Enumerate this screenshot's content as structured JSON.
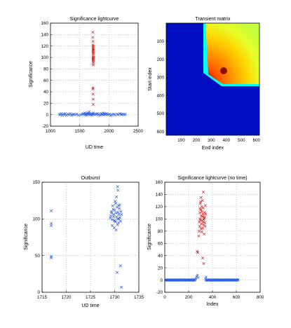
{
  "chart_data": [
    {
      "type": "scatter",
      "title": "Significance lightcurve",
      "xlabel": "UD time",
      "ylabel": "Significance",
      "xlim": [
        1000,
        2500
      ],
      "ylim": [
        -20,
        160
      ],
      "xticks": [
        1000,
        1500,
        2000,
        2500
      ],
      "yticks": [
        -20,
        0,
        20,
        40,
        60,
        80,
        100,
        120,
        140,
        160
      ],
      "grid": true,
      "series": [
        {
          "color": "#2f5de0",
          "marker": "x",
          "points": [
            [
              1150,
              1
            ],
            [
              1165,
              0
            ],
            [
              1185,
              2
            ],
            [
              1200,
              -1
            ],
            [
              1220,
              1
            ],
            [
              1240,
              0
            ],
            [
              1255,
              2
            ],
            [
              1275,
              -1
            ],
            [
              1300,
              1
            ],
            [
              1320,
              0
            ],
            [
              1340,
              2
            ],
            [
              1360,
              -1
            ],
            [
              1380,
              0
            ],
            [
              1395,
              1
            ],
            [
              1420,
              0
            ],
            [
              1450,
              1
            ],
            [
              1480,
              -1
            ],
            [
              1520,
              0
            ],
            [
              1545,
              1
            ],
            [
              1560,
              2
            ],
            [
              1575,
              0
            ],
            [
              1590,
              3
            ],
            [
              1600,
              1
            ],
            [
              1610,
              -1
            ],
            [
              1620,
              2
            ],
            [
              1630,
              0
            ],
            [
              1640,
              3
            ],
            [
              1650,
              1
            ],
            [
              1660,
              5
            ],
            [
              1668,
              2
            ],
            [
              1675,
              0
            ],
            [
              1690,
              1
            ],
            [
              1700,
              -1
            ],
            [
              1710,
              2
            ],
            [
              1720,
              0
            ],
            [
              1735,
              3
            ],
            [
              1745,
              1
            ],
            [
              1760,
              0
            ],
            [
              1780,
              1
            ],
            [
              1800,
              2
            ],
            [
              1815,
              0
            ],
            [
              1830,
              1
            ],
            [
              1850,
              -1
            ],
            [
              1870,
              2
            ],
            [
              1880,
              0
            ],
            [
              1890,
              1
            ],
            [
              1905,
              3
            ],
            [
              1915,
              0
            ],
            [
              1925,
              2
            ],
            [
              1935,
              1
            ],
            [
              1945,
              0
            ],
            [
              1960,
              2
            ],
            [
              1975,
              1
            ],
            [
              1990,
              0
            ],
            [
              2010,
              1
            ],
            [
              2030,
              -1
            ],
            [
              2050,
              0
            ],
            [
              2080,
              1
            ],
            [
              2100,
              0
            ],
            [
              2140,
              1
            ],
            [
              2160,
              0
            ],
            [
              2190,
              2
            ],
            [
              2210,
              1
            ],
            [
              2220,
              0
            ],
            [
              2240,
              1
            ],
            [
              2265,
              0
            ],
            [
              2280,
              1
            ]
          ]
        },
        {
          "color": "#e02020",
          "marker": "x",
          "points": [
            [
              1725,
              144
            ],
            [
              1726,
              135
            ],
            [
              1727,
              128
            ],
            [
              1727,
              122
            ],
            [
              1728,
              118
            ],
            [
              1728,
              114
            ],
            [
              1729,
              110
            ],
            [
              1729,
              107
            ],
            [
              1730,
              104
            ],
            [
              1730,
              101
            ],
            [
              1731,
              99
            ],
            [
              1731,
              96
            ],
            [
              1731,
              93
            ],
            [
              1732,
              90
            ],
            [
              1732,
              87
            ],
            [
              1733,
              120
            ],
            [
              1733,
              112
            ],
            [
              1734,
              108
            ],
            [
              1734,
              100
            ],
            [
              1730,
              113
            ],
            [
              1729,
              98
            ],
            [
              1728,
              95
            ],
            [
              1732,
              116
            ],
            [
              1726,
              47
            ],
            [
              1727,
              45
            ],
            [
              1728,
              36
            ],
            [
              1729,
              27
            ],
            [
              1730,
              18
            ]
          ]
        }
      ]
    },
    {
      "type": "heatmap",
      "title": "Transient matrix",
      "xlabel": "End index",
      "ylabel": "Start index",
      "xlim": [
        0,
        620
      ],
      "ylim": [
        620,
        0
      ],
      "xticks": [
        100,
        200,
        300,
        400,
        500,
        600
      ],
      "yticks": [
        100,
        200,
        300,
        400,
        500,
        600
      ],
      "colormap": "jet",
      "peak": [
        320,
        265
      ],
      "description_values": "blue background, hot region for start<=~290 and end>=~300"
    },
    {
      "type": "scatter",
      "title": "Outburst",
      "xlabel": "UD time",
      "ylabel": "Significance",
      "xlim": [
        1715,
        1735
      ],
      "ylim": [
        0,
        150
      ],
      "xticks": [
        1715,
        1720,
        1725,
        1730,
        1735
      ],
      "yticks": [
        0,
        50,
        100,
        150
      ],
      "grid": true,
      "series": [
        {
          "color": "#2f5de0",
          "marker": "x",
          "points": [
            [
              1716.9,
              111
            ],
            [
              1716.9,
              94
            ],
            [
              1716.9,
              91
            ],
            [
              1716.9,
              49
            ],
            [
              1716.9,
              47
            ],
            [
              1729.1,
              101
            ],
            [
              1729.2,
              104
            ],
            [
              1729.3,
              110
            ],
            [
              1729.4,
              108
            ],
            [
              1729.5,
              99
            ],
            [
              1729.6,
              118
            ],
            [
              1729.7,
              113
            ],
            [
              1729.8,
              106
            ],
            [
              1729.9,
              97
            ],
            [
              1730.0,
              112
            ],
            [
              1730.1,
              124
            ],
            [
              1730.2,
              121
            ],
            [
              1730.3,
              108
            ],
            [
              1730.4,
              103
            ],
            [
              1730.5,
              116
            ],
            [
              1730.6,
              100
            ],
            [
              1730.7,
              109
            ],
            [
              1730.8,
              95
            ],
            [
              1730.9,
              106
            ],
            [
              1731.0,
              114
            ],
            [
              1731.1,
              102
            ],
            [
              1731.2,
              97
            ],
            [
              1729.9,
              88
            ],
            [
              1730.3,
              85
            ],
            [
              1730.6,
              92
            ],
            [
              1731.3,
              110
            ],
            [
              1730.8,
              118
            ],
            [
              1730.0,
              98
            ],
            [
              1729.5,
              91
            ],
            [
              1730.4,
              130
            ],
            [
              1730.7,
              139
            ],
            [
              1730.6,
              144
            ],
            [
              1731.0,
              119
            ],
            [
              1730.2,
              96
            ],
            [
              1729.8,
              103
            ],
            [
              1730.9,
              100
            ],
            [
              1731.4,
              106
            ],
            [
              1730.5,
              27
            ],
            [
              1731.2,
              36
            ],
            [
              1731.4,
              7
            ]
          ]
        }
      ]
    },
    {
      "type": "scatter",
      "title": "Significance lightcurve (no time)",
      "xlabel": "Index",
      "ylabel": "Significance",
      "xlim": [
        0,
        800
      ],
      "ylim": [
        -20,
        160
      ],
      "xticks": [
        0,
        200,
        400,
        600,
        800
      ],
      "yticks": [
        -20,
        0,
        20,
        40,
        60,
        80,
        100,
        120,
        140,
        160
      ],
      "grid": true,
      "series": [
        {
          "color": "#2f5de0",
          "marker": "x",
          "range_baseline": [
            [
              5,
              255,
              0
            ],
            [
              345,
              620,
              0
            ]
          ],
          "ramp": [
            [
              255,
              1
            ],
            [
              262,
              3
            ],
            [
              268,
              6
            ],
            [
              274,
              8
            ],
            [
              280,
              4
            ],
            [
              342,
              2
            ],
            [
              346,
              5
            ]
          ]
        },
        {
          "color": "#e02020",
          "marker": "x",
          "points": [
            [
              272,
              47
            ],
            [
              276,
              45
            ],
            [
              285,
              72
            ],
            [
              288,
              80
            ],
            [
              290,
              95
            ],
            [
              292,
              88
            ],
            [
              294,
              110
            ],
            [
              296,
              100
            ],
            [
              298,
              125
            ],
            [
              300,
              98
            ],
            [
              302,
              115
            ],
            [
              304,
              135
            ],
            [
              306,
              105
            ],
            [
              308,
              92
            ],
            [
              310,
              120
            ],
            [
              312,
              112
            ],
            [
              314,
              97
            ],
            [
              316,
              104
            ],
            [
              318,
              85
            ],
            [
              320,
              108
            ],
            [
              322,
              118
            ],
            [
              324,
              144
            ],
            [
              326,
              99
            ],
            [
              328,
              90
            ],
            [
              330,
              75
            ],
            [
              332,
              103
            ],
            [
              334,
              111
            ],
            [
              336,
              94
            ],
            [
              338,
              88
            ],
            [
              340,
              122
            ],
            [
              342,
              108
            ],
            [
              318,
              36
            ],
            [
              326,
              27
            ],
            [
              300,
              128
            ],
            [
              296,
              117
            ],
            [
              304,
              84
            ],
            [
              310,
              79
            ],
            [
              316,
              130
            ],
            [
              322,
              95
            ],
            [
              330,
              101
            ]
          ]
        }
      ]
    }
  ]
}
